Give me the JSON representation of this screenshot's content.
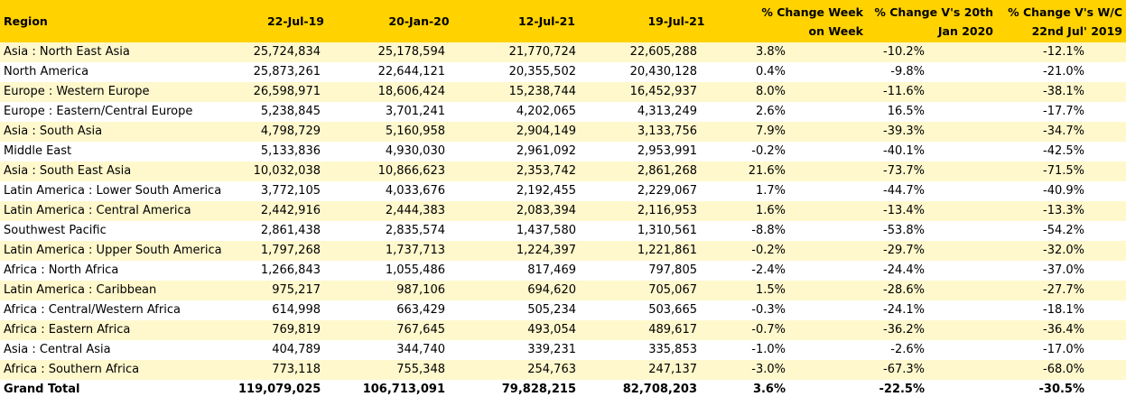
{
  "headers": {
    "region": "Region",
    "d1": "22-Jul-19",
    "d2": "20-Jan-20",
    "d3": "12-Jul-21",
    "d4": "19-Jul-21",
    "wow": "% Change Week on Week",
    "vs_jan": "% Change V's 20th Jan 2020",
    "vs_2019": "% Change V's W/C 22nd Jul' 2019"
  },
  "rows": [
    {
      "region": "Asia : North East Asia",
      "d1": "25,724,834",
      "d2": "25,178,594",
      "d3": "21,770,724",
      "d4": "22,605,288",
      "wow": "3.8%",
      "vs_jan": "-10.2%",
      "vs_2019": "-12.1%"
    },
    {
      "region": "North America",
      "d1": "25,873,261",
      "d2": "22,644,121",
      "d3": "20,355,502",
      "d4": "20,430,128",
      "wow": "0.4%",
      "vs_jan": "-9.8%",
      "vs_2019": "-21.0%"
    },
    {
      "region": "Europe : Western Europe",
      "d1": "26,598,971",
      "d2": "18,606,424",
      "d3": "15,238,744",
      "d4": "16,452,937",
      "wow": "8.0%",
      "vs_jan": "-11.6%",
      "vs_2019": "-38.1%"
    },
    {
      "region": "Europe : Eastern/Central Europe",
      "d1": "5,238,845",
      "d2": "3,701,241",
      "d3": "4,202,065",
      "d4": "4,313,249",
      "wow": "2.6%",
      "vs_jan": "16.5%",
      "vs_2019": "-17.7%"
    },
    {
      "region": "Asia : South Asia",
      "d1": "4,798,729",
      "d2": "5,160,958",
      "d3": "2,904,149",
      "d4": "3,133,756",
      "wow": "7.9%",
      "vs_jan": "-39.3%",
      "vs_2019": "-34.7%"
    },
    {
      "region": "Middle East",
      "d1": "5,133,836",
      "d2": "4,930,030",
      "d3": "2,961,092",
      "d4": "2,953,991",
      "wow": "-0.2%",
      "vs_jan": "-40.1%",
      "vs_2019": "-42.5%"
    },
    {
      "region": "Asia : South East Asia",
      "d1": "10,032,038",
      "d2": "10,866,623",
      "d3": "2,353,742",
      "d4": "2,861,268",
      "wow": "21.6%",
      "vs_jan": "-73.7%",
      "vs_2019": "-71.5%"
    },
    {
      "region": "Latin America : Lower South America",
      "d1": "3,772,105",
      "d2": "4,033,676",
      "d3": "2,192,455",
      "d4": "2,229,067",
      "wow": "1.7%",
      "vs_jan": "-44.7%",
      "vs_2019": "-40.9%"
    },
    {
      "region": "Latin America : Central America",
      "d1": "2,442,916",
      "d2": "2,444,383",
      "d3": "2,083,394",
      "d4": "2,116,953",
      "wow": "1.6%",
      "vs_jan": "-13.4%",
      "vs_2019": "-13.3%"
    },
    {
      "region": "Southwest Pacific",
      "d1": "2,861,438",
      "d2": "2,835,574",
      "d3": "1,437,580",
      "d4": "1,310,561",
      "wow": "-8.8%",
      "vs_jan": "-53.8%",
      "vs_2019": "-54.2%"
    },
    {
      "region": "Latin America : Upper South America",
      "d1": "1,797,268",
      "d2": "1,737,713",
      "d3": "1,224,397",
      "d4": "1,221,861",
      "wow": "-0.2%",
      "vs_jan": "-29.7%",
      "vs_2019": "-32.0%"
    },
    {
      "region": "Africa : North Africa",
      "d1": "1,266,843",
      "d2": "1,055,486",
      "d3": "817,469",
      "d4": "797,805",
      "wow": "-2.4%",
      "vs_jan": "-24.4%",
      "vs_2019": "-37.0%"
    },
    {
      "region": "Latin America : Caribbean",
      "d1": "975,217",
      "d2": "987,106",
      "d3": "694,620",
      "d4": "705,067",
      "wow": "1.5%",
      "vs_jan": "-28.6%",
      "vs_2019": "-27.7%"
    },
    {
      "region": "Africa : Central/Western Africa",
      "d1": "614,998",
      "d2": "663,429",
      "d3": "505,234",
      "d4": "503,665",
      "wow": "-0.3%",
      "vs_jan": "-24.1%",
      "vs_2019": "-18.1%"
    },
    {
      "region": "Africa : Eastern Africa",
      "d1": "769,819",
      "d2": "767,645",
      "d3": "493,054",
      "d4": "489,617",
      "wow": "-0.7%",
      "vs_jan": "-36.2%",
      "vs_2019": "-36.4%"
    },
    {
      "region": "Asia : Central Asia",
      "d1": "404,789",
      "d2": "344,740",
      "d3": "339,231",
      "d4": "335,853",
      "wow": "-1.0%",
      "vs_jan": "-2.6%",
      "vs_2019": "-17.0%"
    },
    {
      "region": "Africa : Southern Africa",
      "d1": "773,118",
      "d2": "755,348",
      "d3": "254,763",
      "d4": "247,137",
      "wow": "-3.0%",
      "vs_jan": "-67.3%",
      "vs_2019": "-68.0%"
    }
  ],
  "total": {
    "region": "Grand Total",
    "d1": "119,079,025",
    "d2": "106,713,091",
    "d3": "79,828,215",
    "d4": "82,708,203",
    "wow": "3.6%",
    "vs_jan": "-22.5%",
    "vs_2019": "-30.5%"
  },
  "colors": {
    "header": "#ffd200",
    "alt_row": "#fff8cc"
  }
}
